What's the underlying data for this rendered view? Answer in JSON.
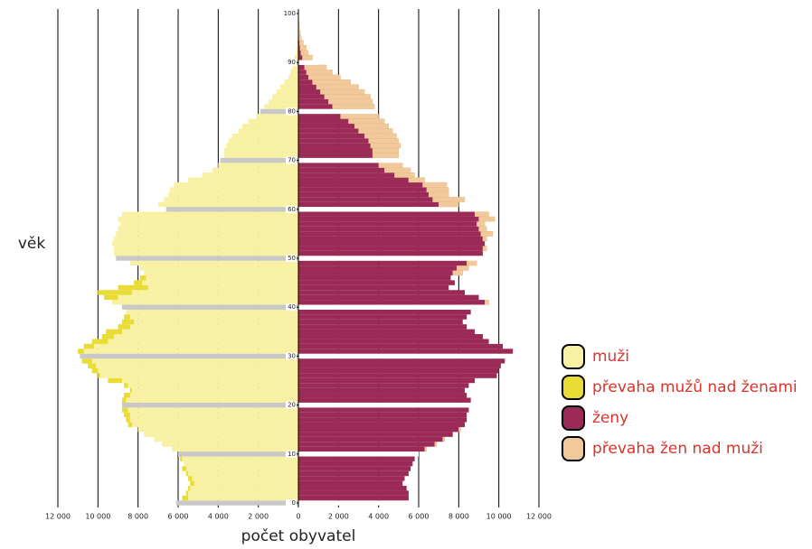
{
  "chart_data": {
    "type": "pyramid",
    "y_label": "věk",
    "x_label": "počet obyvatel",
    "xlim": [
      0,
      12000
    ],
    "xticks": [
      {
        "value": 0,
        "label": "0"
      },
      {
        "value": 2000,
        "label": "2 000"
      },
      {
        "value": 4000,
        "label": "4 000"
      },
      {
        "value": 6000,
        "label": "6 000"
      },
      {
        "value": 8000,
        "label": "8 000"
      },
      {
        "value": 10000,
        "label": "10 000"
      },
      {
        "value": 12000,
        "label": "12 000"
      }
    ],
    "ylim": [
      0,
      100
    ],
    "yticks": [
      0,
      10,
      20,
      30,
      40,
      50,
      60,
      70,
      80,
      90,
      100
    ],
    "series": [
      {
        "name": "muži",
        "color": "#f8f0a2",
        "excess_name": "převaha mužů nad ženami",
        "excess_color": "#e9dc34",
        "values": [
          6100,
          5800,
          5600,
          5500,
          5400,
          5500,
          5600,
          5800,
          5700,
          5900,
          6000,
          6300,
          6800,
          7200,
          7700,
          8000,
          8500,
          8600,
          8700,
          8800,
          8800,
          8800,
          8700,
          8400,
          8700,
          9500,
          10000,
          10300,
          10500,
          10800,
          10900,
          11000,
          10700,
          10300,
          9800,
          9600,
          9000,
          8800,
          8700,
          8600,
          8800,
          9300,
          9700,
          10000,
          9000,
          8200,
          7900,
          7700,
          7900,
          8400,
          9100,
          9200,
          9200,
          9300,
          9200,
          9100,
          9000,
          8900,
          9000,
          8800,
          6600,
          7000,
          6700,
          6500,
          6400,
          6200,
          5500,
          4800,
          4300,
          4000,
          3900,
          3700,
          3700,
          3600,
          3500,
          3300,
          3000,
          2800,
          2500,
          2100,
          1900,
          1700,
          1500,
          1300,
          1100,
          900,
          700,
          500,
          400,
          300,
          250,
          200,
          120,
          80,
          50,
          30,
          20,
          10,
          5,
          3,
          1
        ]
      },
      {
        "name": "ženy",
        "color": "#9b2a56",
        "excess_name": "převaha žen nad muži",
        "excess_color": "#f2c99b",
        "values": [
          5900,
          5500,
          5500,
          5400,
          5200,
          5300,
          5500,
          5600,
          5700,
          5800,
          6000,
          6400,
          6900,
          7300,
          7700,
          8100,
          8300,
          8400,
          8400,
          8500,
          8500,
          8600,
          8400,
          8300,
          8500,
          8800,
          9900,
          10000,
          10100,
          10300,
          10500,
          10700,
          10200,
          9500,
          9200,
          8800,
          8400,
          8200,
          8400,
          8600,
          8900,
          9500,
          9000,
          8300,
          7500,
          7800,
          7600,
          8200,
          8500,
          8900,
          9200,
          9200,
          9400,
          9300,
          9400,
          9700,
          9400,
          9300,
          9800,
          9500,
          7300,
          8000,
          8300,
          7500,
          7500,
          7400,
          6300,
          5800,
          5600,
          5200,
          5200,
          5000,
          5000,
          5100,
          5000,
          4900,
          4700,
          4500,
          4300,
          4000,
          3900,
          3800,
          3700,
          3600,
          3300,
          3000,
          2600,
          2100,
          1700,
          1400,
          1000,
          700,
          500,
          400,
          250,
          150,
          100,
          60,
          40,
          20,
          10
        ]
      }
    ]
  }
}
